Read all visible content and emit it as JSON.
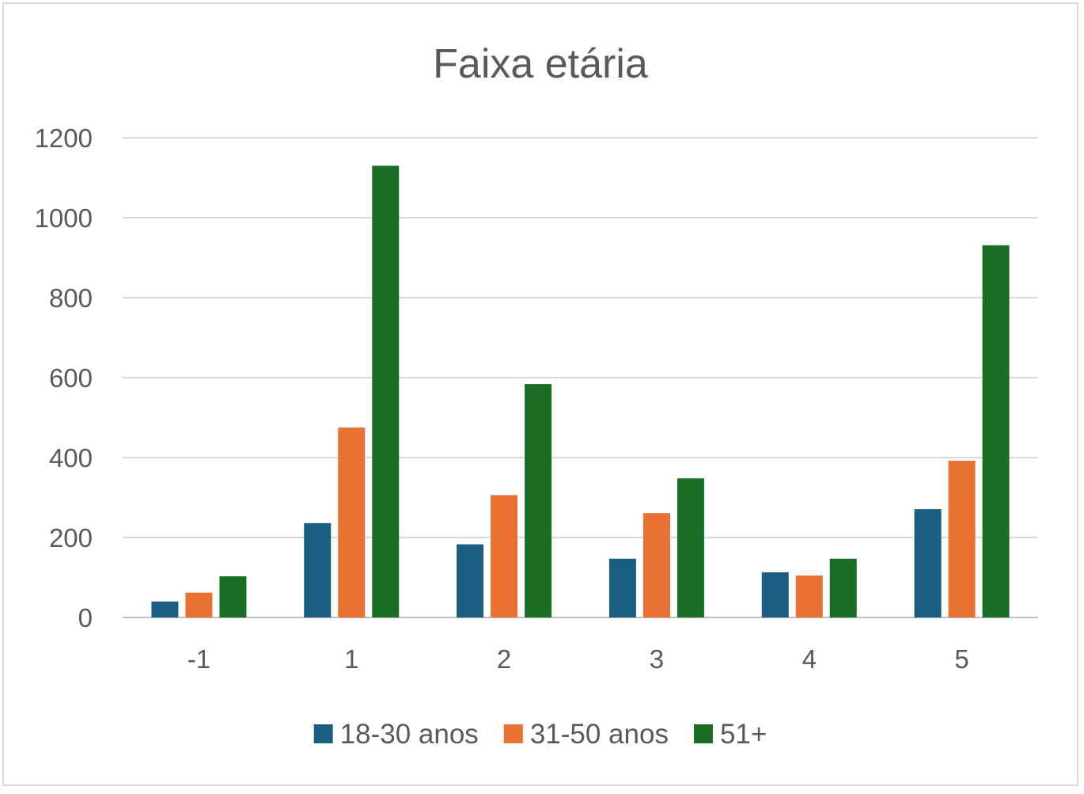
{
  "chart_data": {
    "type": "bar",
    "title": "Faixa etária",
    "xlabel": "",
    "ylabel": "",
    "categories": [
      "-1",
      "1",
      "2",
      "3",
      "4",
      "5"
    ],
    "ylim": [
      0,
      1200
    ],
    "yticks": [
      0,
      200,
      400,
      600,
      800,
      1000,
      1200
    ],
    "grid": true,
    "legend_position": "bottom",
    "series": [
      {
        "name": "18-30 anos",
        "color": "#1a5f82",
        "values": [
          40,
          236,
          183,
          147,
          113,
          271
        ]
      },
      {
        "name": "31-50 anos",
        "color": "#e97132",
        "values": [
          62,
          475,
          306,
          261,
          105,
          392
        ]
      },
      {
        "name": "51+",
        "color": "#1b6e26",
        "values": [
          103,
          1130,
          584,
          348,
          147,
          931
        ]
      }
    ]
  }
}
